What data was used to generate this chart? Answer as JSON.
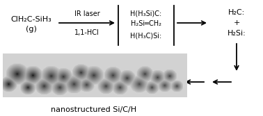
{
  "bg_color": "#ffffff",
  "text_color": "#000000",
  "reactant_line1": "ClH₂C-SiH₃",
  "reactant_line2": "(g)",
  "arrow1_label_top": "IR laser",
  "arrow1_label_bot": "1,1-HCl",
  "box_line1": "H(H₃Si)C:",
  "box_line2": "H₂Si═CH₂",
  "box_line3": "H(H₃C)Si:",
  "product_line1": "H₂C:",
  "product_line2": "+",
  "product_line3": "H₂Si:",
  "nano_label": "nanostructured Si/C/H",
  "fig_width": 3.78,
  "fig_height": 1.67,
  "dpi": 100
}
